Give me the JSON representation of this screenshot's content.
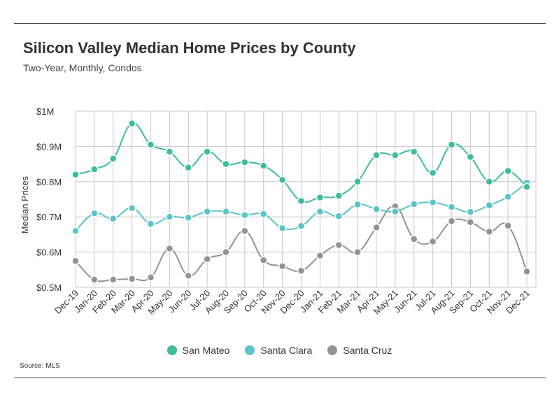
{
  "title": "Silicon Valley Median Home Prices by County",
  "subtitle": "Two-Year, Monthly, Condos",
  "source": "Source:  MLS",
  "colors": {
    "san_mateo": "#3dbd9c",
    "santa_clara": "#5cc3c9",
    "santa_cruz": "#939393"
  },
  "chart_data": {
    "type": "line",
    "title": "Silicon Valley Median Home Prices by County",
    "subtitle": "Two-Year, Monthly, Condos",
    "ylabel": "Median Prices",
    "xlabel": "",
    "ylim": [
      500000,
      1000000
    ],
    "yticks": [
      500000,
      600000,
      700000,
      800000,
      900000,
      1000000
    ],
    "ytick_labels": [
      "$0.5M",
      "$0.6M",
      "$0.7M",
      "$0.8M",
      "$0.9M",
      "$1M"
    ],
    "grid": true,
    "legend_position": "bottom",
    "categories": [
      "Dec-19",
      "Jan-20",
      "Feb-20",
      "Mar-20",
      "Apr-20",
      "May-20",
      "Jun-20",
      "Jul-20",
      "Aug-20",
      "Sep-20",
      "Oct-20",
      "Nov-20",
      "Dec-20",
      "Jan-21",
      "Feb-21",
      "Mar-21",
      "Apr-21",
      "May-21",
      "Jun-21",
      "Jul-21",
      "Aug-21",
      "Sep-21",
      "Oct-21",
      "Nov-21",
      "Dec-21"
    ],
    "series": [
      {
        "name": "San Mateo",
        "color": "#3dbd9c",
        "values": [
          820000,
          835000,
          865000,
          965000,
          905000,
          885000,
          840000,
          885000,
          850000,
          855000,
          845000,
          805000,
          745000,
          755000,
          760000,
          800000,
          875000,
          875000,
          885000,
          825000,
          905000,
          870000,
          800000,
          830000,
          785000
        ]
      },
      {
        "name": "Santa Clara",
        "color": "#5cc3c9",
        "values": [
          660000,
          710000,
          695000,
          725000,
          680000,
          700000,
          698000,
          715000,
          715000,
          705000,
          708000,
          668000,
          674000,
          715000,
          702000,
          735000,
          722000,
          715000,
          736000,
          741000,
          728000,
          714000,
          733000,
          757000,
          797000
        ]
      },
      {
        "name": "Santa Cruz",
        "color": "#939393",
        "values": [
          575000,
          522000,
          522000,
          524000,
          528000,
          610000,
          533000,
          580000,
          600000,
          660000,
          577000,
          560000,
          547000,
          590000,
          620000,
          600000,
          670000,
          730000,
          637000,
          630000,
          688000,
          685000,
          658000,
          675000,
          545000
        ]
      }
    ]
  }
}
